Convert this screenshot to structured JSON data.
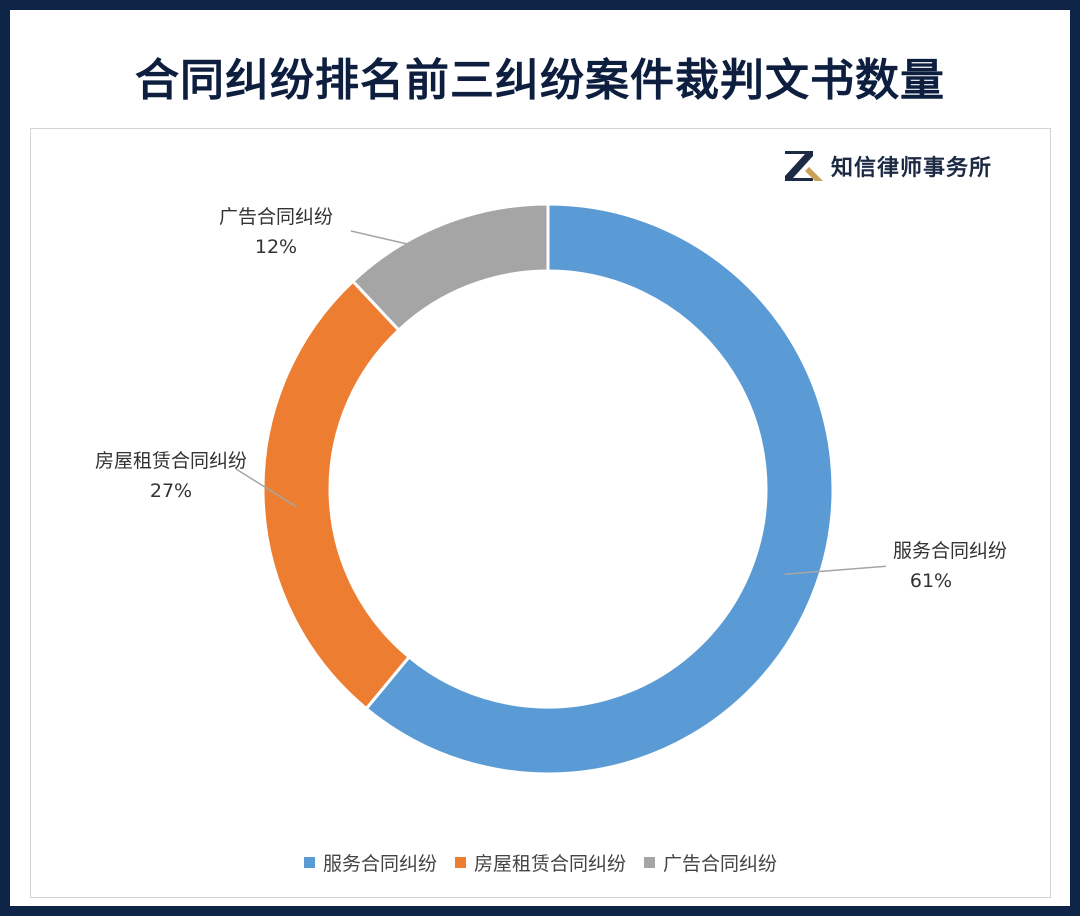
{
  "title": "合同纠纷排名前三纠纷案件裁判文书数量",
  "logo": {
    "text": "知信律师事务所",
    "icon": "zx-logo-icon"
  },
  "chart_data": {
    "type": "pie",
    "donut": true,
    "categories": [
      "服务合同纠纷",
      "房屋租赁合同纠纷",
      "广告合同纠纷"
    ],
    "values": [
      61,
      27,
      12
    ],
    "value_labels": [
      "61%",
      "27%",
      "12%"
    ],
    "colors": [
      "#5b9bd5",
      "#ed7d31",
      "#a5a5a5"
    ],
    "legend_position": "bottom"
  }
}
